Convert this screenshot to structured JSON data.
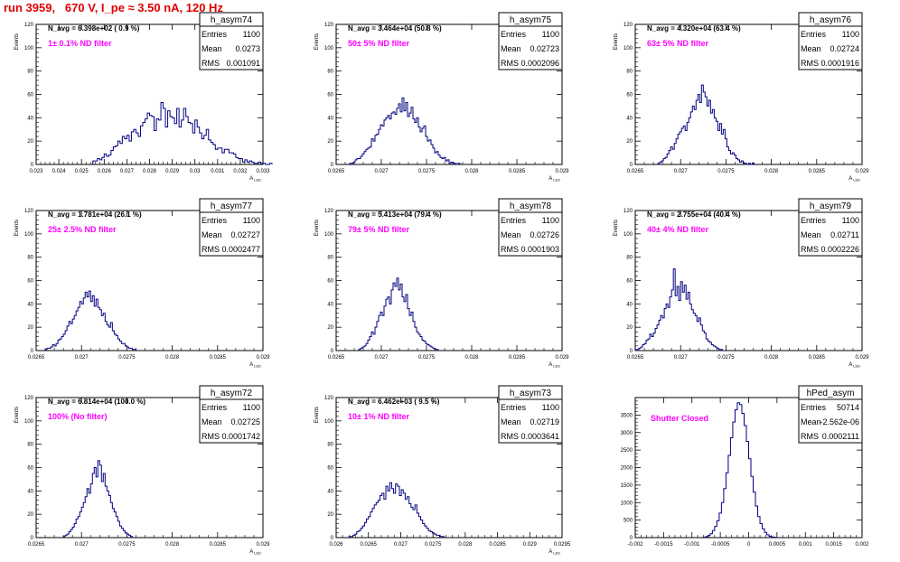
{
  "header": {
    "run_title": "run 3959,   670 V, I_pe ≈ 3.50 nA, 120 Hz"
  },
  "style": {
    "histogram_color": "#000080",
    "title_color": "#e00000",
    "annotation_color": "#ff00ff"
  },
  "chart_data": [
    {
      "type": "histogram",
      "name": "h_asym74",
      "stats": {
        "Entries": "1100",
        "Mean": "0.0273",
        "RMS": "0.001091"
      },
      "navg": "N_avg = 6.398e+02 ( 0.9 %)",
      "annotation": "1± 0.1% ND filter",
      "ylabel": "Events",
      "xlabel": "A_LED",
      "xlim": [
        0.023,
        0.033
      ],
      "ylim": [
        0,
        120
      ],
      "xticks": [
        0.023,
        0.024,
        0.025,
        0.026,
        0.027,
        0.028,
        0.029,
        0.03,
        0.031,
        0.032,
        0.033
      ],
      "xtick_labels": [
        "0.023",
        "0.024",
        "0.025",
        "0.026",
        "0.027",
        "0.028",
        "0.029",
        "0.03",
        "0.031",
        "0.032",
        "0.033"
      ],
      "yticks": [
        0,
        20,
        40,
        60,
        80,
        100,
        120
      ],
      "ytick_labels": [
        "0",
        "20",
        "40",
        "60",
        "80",
        "100",
        "120"
      ],
      "bin_start": 0.0255,
      "bin_width": 0.0001,
      "counts": [
        3,
        3,
        5,
        4,
        6,
        9,
        7,
        8,
        12,
        15,
        16,
        20,
        18,
        24,
        22,
        25,
        20,
        28,
        30,
        27,
        24,
        33,
        36,
        39,
        44,
        42,
        41,
        29,
        39,
        38,
        53,
        48,
        32,
        46,
        41,
        40,
        35,
        48,
        32,
        38,
        48,
        41,
        36,
        35,
        27,
        38,
        32,
        27,
        22,
        25,
        30,
        21,
        19,
        17,
        13,
        14,
        14,
        10,
        13,
        13,
        10,
        10,
        9,
        6,
        5,
        5,
        2,
        4,
        2,
        3,
        2,
        1,
        1,
        2,
        1,
        1,
        0,
        0,
        1
      ]
    },
    {
      "type": "histogram",
      "name": "h_asym75",
      "stats": {
        "Entries": "1100",
        "Mean": "0.02723",
        "RMS": "0.0002096"
      },
      "navg": "N_avg = 3.464e+04 (50.8 %)",
      "annotation": "50± 5% ND filter",
      "ylabel": "Events",
      "xlabel": "A_LED",
      "xlim": [
        0.0265,
        0.029
      ],
      "ylim": [
        0,
        120
      ],
      "xticks": [
        0.0265,
        0.027,
        0.0275,
        0.028,
        0.0285,
        0.029
      ],
      "xtick_labels": [
        "0.0265",
        "0.027",
        "0.0275",
        "0.028",
        "0.0285",
        "0.029"
      ],
      "yticks": [
        0,
        20,
        40,
        60,
        80,
        100,
        120
      ],
      "ytick_labels": [
        "0",
        "20",
        "40",
        "60",
        "80",
        "100",
        "120"
      ],
      "bin_start": 0.02665,
      "bin_width": 2e-05,
      "counts": [
        1,
        1,
        2,
        4,
        5,
        5,
        7,
        9,
        11,
        13,
        14,
        15,
        22,
        20,
        25,
        26,
        30,
        34,
        33,
        38,
        40,
        42,
        39,
        44,
        45,
        43,
        48,
        52,
        45,
        57,
        46,
        53,
        41,
        44,
        49,
        39,
        36,
        40,
        32,
        28,
        31,
        33,
        24,
        20,
        21,
        17,
        14,
        10,
        11,
        8,
        6,
        5,
        6,
        3,
        4,
        1,
        2,
        1,
        1,
        0,
        1
      ]
    },
    {
      "type": "histogram",
      "name": "h_asym76",
      "stats": {
        "Entries": "1100",
        "Mean": "0.02724",
        "RMS": "0.0001916"
      },
      "navg": "N_avg = 4.320e+04 (63.4 %)",
      "annotation": "63± 5% ND filter",
      "ylabel": "Events",
      "xlabel": "A_LED",
      "xlim": [
        0.0265,
        0.029
      ],
      "ylim": [
        0,
        120
      ],
      "xticks": [
        0.0265,
        0.027,
        0.0275,
        0.028,
        0.0285,
        0.029
      ],
      "xtick_labels": [
        "0.0265",
        "0.027",
        "0.0275",
        "0.028",
        "0.0285",
        "0.029"
      ],
      "yticks": [
        0,
        20,
        40,
        60,
        80,
        100,
        120
      ],
      "ytick_labels": [
        "0",
        "20",
        "40",
        "60",
        "80",
        "100",
        "120"
      ],
      "bin_start": 0.02675,
      "bin_width": 2e-05,
      "counts": [
        1,
        2,
        3,
        5,
        6,
        9,
        12,
        15,
        13,
        18,
        22,
        26,
        28,
        31,
        33,
        29,
        36,
        40,
        45,
        50,
        47,
        55,
        60,
        53,
        68,
        62,
        58,
        50,
        55,
        44,
        47,
        40,
        37,
        29,
        35,
        26,
        30,
        22,
        15,
        12,
        9,
        10,
        8,
        5,
        4,
        2,
        3,
        1,
        1,
        0,
        1,
        0,
        1
      ]
    },
    {
      "type": "histogram",
      "name": "h_asym77",
      "stats": {
        "Entries": "1100",
        "Mean": "0.02727",
        "RMS": "0.0002477"
      },
      "navg": "N_avg = 1.781e+04 (26.1 %)",
      "annotation": "25± 2.5% ND filter",
      "ylabel": "Events",
      "xlabel": "A_LED",
      "xlim": [
        0.0265,
        0.029
      ],
      "ylim": [
        0,
        120
      ],
      "xticks": [
        0.0265,
        0.027,
        0.0275,
        0.028,
        0.0285,
        0.029
      ],
      "xtick_labels": [
        "0.0265",
        "0.027",
        "0.0275",
        "0.028",
        "0.0285",
        "0.029"
      ],
      "yticks": [
        0,
        20,
        40,
        60,
        80,
        100,
        120
      ],
      "ytick_labels": [
        "0",
        "20",
        "40",
        "60",
        "80",
        "100",
        "120"
      ],
      "bin_start": 0.0266,
      "bin_width": 2e-05,
      "counts": [
        1,
        2,
        2,
        3,
        5,
        4,
        6,
        9,
        10,
        12,
        14,
        17,
        21,
        25,
        23,
        27,
        30,
        34,
        37,
        42,
        40,
        45,
        50,
        46,
        51,
        42,
        47,
        38,
        44,
        37,
        35,
        30,
        32,
        25,
        22,
        20,
        24,
        17,
        14,
        13,
        10,
        8,
        6,
        6,
        4,
        3,
        2,
        2,
        1,
        1
      ]
    },
    {
      "type": "histogram",
      "name": "h_asym78",
      "stats": {
        "Entries": "1100",
        "Mean": "0.02726",
        "RMS": "0.0001903"
      },
      "navg": "N_avg = 5.413e+04 (79.4 %)",
      "annotation": "79± 5% ND filter",
      "ylabel": "Events",
      "xlabel": "A_LED",
      "xlim": [
        0.0265,
        0.029
      ],
      "ylim": [
        0,
        120
      ],
      "xticks": [
        0.0265,
        0.027,
        0.0275,
        0.028,
        0.0285,
        0.029
      ],
      "xtick_labels": [
        "0.0265",
        "0.027",
        "0.0275",
        "0.028",
        "0.0285",
        "0.029"
      ],
      "yticks": [
        0,
        20,
        40,
        60,
        80,
        100,
        120
      ],
      "ytick_labels": [
        "0",
        "20",
        "40",
        "60",
        "80",
        "100",
        "120"
      ],
      "bin_start": 0.02675,
      "bin_width": 2e-05,
      "counts": [
        1,
        2,
        3,
        4,
        6,
        9,
        12,
        16,
        14,
        20,
        25,
        30,
        33,
        30,
        38,
        44,
        46,
        40,
        52,
        58,
        55,
        62,
        52,
        57,
        46,
        42,
        48,
        36,
        30,
        33,
        25,
        20,
        16,
        14,
        12,
        9,
        8,
        6,
        5,
        4,
        3,
        2,
        1,
        1
      ]
    },
    {
      "type": "histogram",
      "name": "h_asym79",
      "stats": {
        "Entries": "1100",
        "Mean": "0.02711",
        "RMS": "0.0002226"
      },
      "navg": "N_avg = 2.755e+04 (40.4 %)",
      "annotation": "40± 4% ND filter",
      "ylabel": "Events",
      "xlabel": "A_LED",
      "xlim": [
        0.0265,
        0.029
      ],
      "ylim": [
        0,
        120
      ],
      "xticks": [
        0.0265,
        0.027,
        0.0275,
        0.028,
        0.0285,
        0.029
      ],
      "xtick_labels": [
        "0.0265",
        "0.027",
        "0.0275",
        "0.028",
        "0.0285",
        "0.029"
      ],
      "yticks": [
        0,
        20,
        40,
        60,
        80,
        100,
        120
      ],
      "ytick_labels": [
        "0",
        "20",
        "40",
        "60",
        "80",
        "100",
        "120"
      ],
      "bin_start": 0.0265,
      "bin_width": 2e-05,
      "counts": [
        1,
        1,
        2,
        3,
        5,
        6,
        9,
        10,
        14,
        12,
        15,
        19,
        22,
        26,
        30,
        28,
        36,
        40,
        37,
        46,
        52,
        70,
        47,
        55,
        43,
        59,
        50,
        56,
        44,
        50,
        40,
        35,
        32,
        30,
        25,
        28,
        22,
        17,
        15,
        10,
        8,
        7,
        5,
        4,
        3,
        2,
        1,
        1
      ]
    },
    {
      "type": "histogram",
      "name": "h_asym72",
      "stats": {
        "Entries": "1100",
        "Mean": "0.02725",
        "RMS": "0.0001742"
      },
      "navg": "N_avg = 6.814e+04 (100.0 %)",
      "annotation": "100% (No filter)",
      "ylabel": "Events",
      "xlabel": "A_LED",
      "xlim": [
        0.0265,
        0.029
      ],
      "ylim": [
        0,
        120
      ],
      "xticks": [
        0.0265,
        0.027,
        0.0275,
        0.028,
        0.0285,
        0.029
      ],
      "xtick_labels": [
        "0.0265",
        "0.027",
        "0.0275",
        "0.028",
        "0.0285",
        "0.029"
      ],
      "yticks": [
        0,
        20,
        40,
        60,
        80,
        100,
        120
      ],
      "ytick_labels": [
        "0",
        "20",
        "40",
        "60",
        "80",
        "100",
        "120"
      ],
      "bin_start": 0.0268,
      "bin_width": 2e-05,
      "counts": [
        1,
        2,
        3,
        5,
        7,
        9,
        12,
        16,
        18,
        22,
        26,
        30,
        35,
        42,
        38,
        46,
        55,
        60,
        52,
        66,
        62,
        48,
        55,
        44,
        40,
        36,
        30,
        25,
        22,
        18,
        14,
        10,
        8,
        6,
        4,
        3,
        2,
        1
      ]
    },
    {
      "type": "histogram",
      "name": "h_asym73",
      "stats": {
        "Entries": "1100",
        "Mean": "0.02719",
        "RMS": "0.0003641"
      },
      "navg": "N_avg = 6.462e+03 ( 9.5 %)",
      "annotation": "10± 1% ND filter",
      "ylabel": "Events",
      "xlabel": "A_LED",
      "xlim": [
        0.026,
        0.0295
      ],
      "ylim": [
        0,
        120
      ],
      "xticks": [
        0.026,
        0.0265,
        0.027,
        0.0275,
        0.028,
        0.0285,
        0.029,
        0.0295
      ],
      "xtick_labels": [
        "0.026",
        "0.0265",
        "0.027",
        "0.0275",
        "0.028",
        "0.0285",
        "0.029",
        "0.0295"
      ],
      "yticks": [
        0,
        20,
        40,
        60,
        80,
        100,
        120
      ],
      "ytick_labels": [
        "0",
        "20",
        "40",
        "60",
        "80",
        "100",
        "120"
      ],
      "bin_start": 0.0262,
      "bin_width": 3e-05,
      "counts": [
        1,
        1,
        2,
        3,
        5,
        6,
        8,
        10,
        13,
        16,
        18,
        22,
        25,
        28,
        30,
        32,
        36,
        38,
        33,
        44,
        40,
        47,
        42,
        38,
        46,
        44,
        36,
        41,
        38,
        33,
        35,
        29,
        26,
        24,
        28,
        21,
        18,
        15,
        12,
        10,
        8,
        6,
        5,
        4,
        3,
        2,
        2,
        1,
        1
      ]
    },
    {
      "type": "histogram",
      "name": "hPed_asym",
      "stats": {
        "Entries": "50714",
        "Mean": "-2.562e-06",
        "RMS": "0.0002111"
      },
      "navg": "",
      "annotation": "Shutter Closed",
      "ylabel": "",
      "xlabel": "",
      "xlim": [
        -0.002,
        0.002
      ],
      "ylim": [
        0,
        4000
      ],
      "xticks": [
        -0.002,
        -0.0015,
        -0.001,
        -0.0005,
        0,
        0.0005,
        0.001,
        0.0015,
        0.002
      ],
      "xtick_labels": [
        "-0.002",
        "-0.0015",
        "-0.001",
        "-0.0005",
        "0",
        "0.0005",
        "0.001",
        "0.0015",
        "0.002"
      ],
      "yticks": [
        0,
        500,
        1000,
        1500,
        2000,
        2500,
        3000,
        3500
      ],
      "ytick_labels": [
        "0",
        "500",
        "1000",
        "1500",
        "2000",
        "2500",
        "3000",
        "3500"
      ],
      "bin_start": -0.0008,
      "bin_width": 4e-05,
      "counts": [
        10,
        30,
        60,
        110,
        200,
        320,
        480,
        700,
        1000,
        1400,
        1850,
        2350,
        2850,
        3300,
        3650,
        3850,
        3800,
        3550,
        3200,
        2750,
        2250,
        1750,
        1300,
        900,
        600,
        400,
        250,
        150,
        80,
        40,
        20,
        10
      ]
    }
  ]
}
